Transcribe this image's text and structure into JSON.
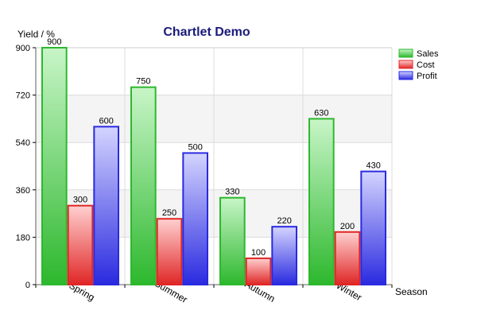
{
  "chart_data": {
    "type": "bar",
    "title": "Chartlet Demo",
    "xlabel": "Season",
    "ylabel": "Yield / %",
    "categories": [
      "Spring",
      "Summer",
      "Autumn",
      "Winter"
    ],
    "series": [
      {
        "name": "Sales",
        "values": [
          900,
          750,
          330,
          630
        ],
        "color": "#2db82d",
        "color_light": "#c8f5c8"
      },
      {
        "name": "Cost",
        "values": [
          300,
          250,
          100,
          200
        ],
        "color": "#e02626",
        "color_light": "#ffd0d0"
      },
      {
        "name": "Profit",
        "values": [
          600,
          500,
          220,
          430
        ],
        "color": "#2a2ae0",
        "color_light": "#d4d4ff"
      }
    ],
    "ylim": [
      0,
      900
    ],
    "yticks": [
      "0",
      "180",
      "360",
      "540",
      "720",
      "900"
    ],
    "grid": true,
    "legend_position": "top-right"
  }
}
